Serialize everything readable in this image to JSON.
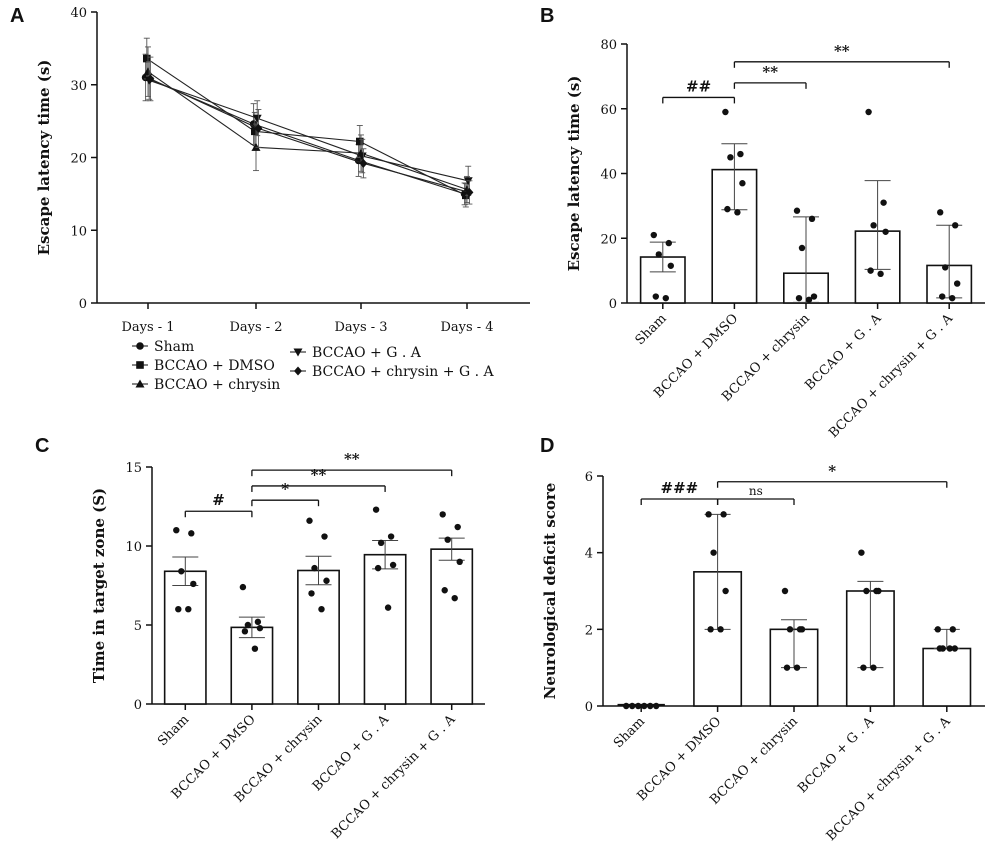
{
  "chart_data": [
    {
      "panel": "A",
      "type": "line",
      "ylabel": "Escape latency time (s)",
      "xlabel": "",
      "categories": [
        "Days - 1",
        "Days - 2",
        "Days - 3",
        "Days - 4"
      ],
      "ylim": [
        0,
        40
      ],
      "yticks": [
        0,
        10,
        20,
        30,
        40
      ],
      "legend_position": "bottom",
      "series": [
        {
          "name": "Sham",
          "marker": "circle",
          "values": [
            31.0,
            24.6,
            19.6,
            15.0
          ],
          "err": [
            3.2,
            2.8,
            2.2,
            1.5
          ]
        },
        {
          "name": "BCCAO + DMSO",
          "marker": "square",
          "values": [
            33.6,
            23.6,
            22.2,
            14.8
          ],
          "err": [
            2.8,
            2.6,
            2.2,
            1.6
          ]
        },
        {
          "name": "BCCAO + chrysin",
          "marker": "triangle-up",
          "values": [
            31.8,
            21.4,
            20.6,
            15.6
          ],
          "err": [
            3.4,
            3.2,
            2.5,
            1.8
          ]
        },
        {
          "name": "BCCAO + G . A",
          "marker": "triangle-down",
          "values": [
            30.6,
            25.4,
            20.2,
            16.8
          ],
          "err": [
            2.6,
            2.4,
            2.3,
            2.0
          ]
        },
        {
          "name": "BCCAO + chrysin + G . A",
          "marker": "diamond",
          "values": [
            30.8,
            24.0,
            19.2,
            15.2
          ],
          "err": [
            3.0,
            2.6,
            2.0,
            1.6
          ]
        }
      ]
    },
    {
      "panel": "B",
      "type": "bar",
      "ylabel": "Escape latency time (s)",
      "categories": [
        "Sham",
        "BCCAO + DMSO",
        "BCCAO + chrysin",
        "BCCAO + G . A",
        "BCCAO + chrysin + G . A"
      ],
      "values": [
        14.2,
        41.2,
        9.2,
        22.2,
        11.6
      ],
      "err": [
        4.6,
        8.0,
        17.4,
        15.6,
        12.4
      ],
      "err_low": [
        4.6,
        12.4,
        9.0,
        11.8,
        10.0
      ],
      "points": [
        [
          21,
          18.5,
          15,
          11.5,
          2,
          1.5
        ],
        [
          59,
          46,
          45,
          37,
          29,
          28
        ],
        [
          28.5,
          26,
          17,
          2,
          1.5,
          1
        ],
        [
          59,
          31,
          24,
          22,
          10,
          9
        ],
        [
          28,
          24,
          11,
          6,
          2,
          1.5
        ]
      ],
      "ylim": [
        0,
        80
      ],
      "yticks": [
        0,
        20,
        40,
        60,
        80
      ],
      "sig": [
        {
          "from": 0,
          "to": 1,
          "label": "##",
          "y": 63.5
        },
        {
          "from": 1,
          "to": 2,
          "label": "**",
          "y": 68
        },
        {
          "from": 1,
          "to": 4,
          "label": "**",
          "y": 74.5
        }
      ]
    },
    {
      "panel": "C",
      "type": "bar",
      "ylabel": "Time in target zone (S)",
      "categories": [
        "Sham",
        "BCCAO + DMSO",
        "BCCAO + chrysin",
        "BCCAO + G . A",
        "BCCAO + chrysin + G . A"
      ],
      "values": [
        8.4,
        4.85,
        8.45,
        9.45,
        9.8
      ],
      "err": [
        0.9,
        0.65,
        0.9,
        0.9,
        0.7
      ],
      "err_low": [
        0.9,
        0.65,
        0.9,
        0.9,
        0.7
      ],
      "points": [
        [
          11,
          10.8,
          8.4,
          7.6,
          6,
          6
        ],
        [
          7.4,
          5.2,
          5,
          4.8,
          4.6,
          3.5
        ],
        [
          11.6,
          10.6,
          8.6,
          7.8,
          7,
          6
        ],
        [
          12.3,
          10.6,
          10.2,
          8.8,
          8.6,
          6.1
        ],
        [
          12,
          11.2,
          10.4,
          9,
          7.2,
          6.7
        ]
      ],
      "ylim": [
        0,
        15
      ],
      "yticks": [
        0,
        5,
        10,
        15
      ],
      "sig": [
        {
          "from": 0,
          "to": 1,
          "label": "#",
          "y": 12.2
        },
        {
          "from": 1,
          "to": 2,
          "label": "*",
          "y": 12.9
        },
        {
          "from": 1,
          "to": 3,
          "label": "**",
          "y": 13.8
        },
        {
          "from": 1,
          "to": 4,
          "label": "**",
          "y": 14.8
        }
      ]
    },
    {
      "panel": "D",
      "type": "bar",
      "ylabel": "Neurological deficit score",
      "categories": [
        "Sham",
        "BCCAO + DMSO",
        "BCCAO + chrysin",
        "BCCAO + G . A",
        "BCCAO + chrysin + G . A"
      ],
      "values": [
        0,
        3.5,
        2.0,
        3.0,
        1.5
      ],
      "err": [
        0,
        1.5,
        0.25,
        0.25,
        0.5
      ],
      "err_low": [
        0,
        1.5,
        1.0,
        2.0,
        0
      ],
      "points": [
        [
          0,
          0,
          0,
          0,
          0,
          0
        ],
        [
          5,
          5,
          4,
          3,
          2,
          2
        ],
        [
          3,
          2,
          2,
          2,
          1,
          1
        ],
        [
          4,
          3,
          3,
          3,
          1,
          1
        ],
        [
          2,
          2,
          1.5,
          1.5,
          1.5,
          1.5
        ]
      ],
      "ylim": [
        0,
        6
      ],
      "yticks": [
        0,
        2,
        4,
        6
      ],
      "sig": [
        {
          "from": 0,
          "to": 1,
          "label": "###",
          "y": 5.4
        },
        {
          "from": 1,
          "to": 2,
          "label": "ns",
          "y": 5.4
        },
        {
          "from": 1,
          "to": 4,
          "label": "*",
          "y": 5.85
        }
      ]
    }
  ]
}
